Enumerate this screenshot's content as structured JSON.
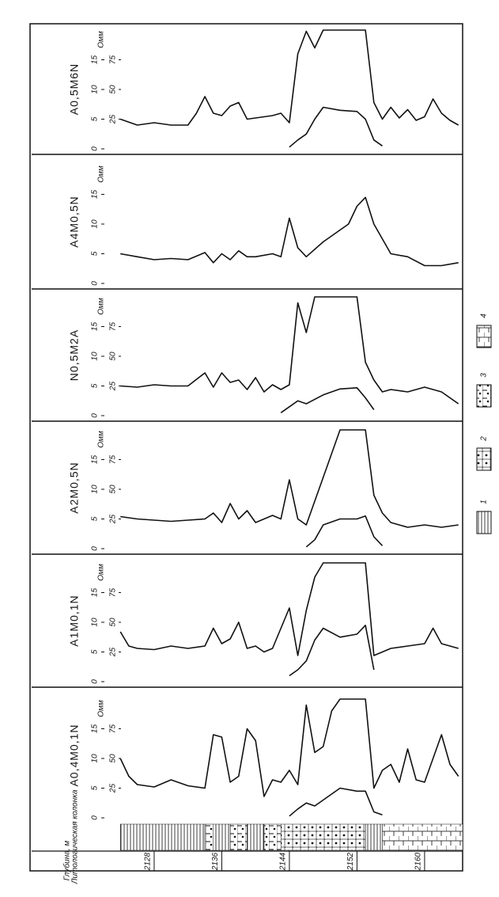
{
  "depth_axis": {
    "label": "Глубина, м",
    "xlim": [
      2113.5,
      2164.5
    ],
    "xticks": [
      2128,
      2136,
      2144,
      2152,
      2160
    ]
  },
  "chart_data": [
    {
      "type": "line",
      "title": "A0,5M6N",
      "y_label": "Омм",
      "xlim": [
        2113.5,
        2164.5
      ],
      "ylim": [
        0,
        20
      ],
      "yticks": [
        0,
        5,
        10,
        15
      ],
      "y2lim": [
        0,
        100
      ],
      "y2ticks": [
        25,
        50,
        75
      ],
      "series": [
        {
          "color": "#111111",
          "axis": "y2",
          "x": [
            2124,
            2126,
            2128,
            2130,
            2132,
            2133,
            2134,
            2135,
            2136,
            2137,
            2138,
            2139,
            2140,
            2142,
            2143,
            2144,
            2145,
            2146,
            2147,
            2148,
            2153,
            2154,
            2155,
            2156,
            2157,
            2158,
            2159,
            2160,
            2161,
            2162,
            2163,
            2164
          ],
          "values": [
            25,
            20,
            22,
            20,
            20,
            30,
            44,
            30,
            28,
            36,
            39,
            25,
            26,
            28,
            30,
            22,
            80,
            99,
            85,
            100,
            100,
            39,
            25,
            35,
            26,
            33,
            24,
            27,
            42,
            30,
            24,
            20
          ]
        },
        {
          "color": "#111111",
          "x": [
            2144,
            2145,
            2146,
            2147,
            2148,
            2150,
            2152,
            2153,
            2154,
            2155
          ],
          "values": [
            0.3,
            1.5,
            2.5,
            5,
            7,
            6.5,
            6.3,
            5,
            1.5,
            0.5
          ]
        }
      ]
    },
    {
      "type": "line",
      "title": "A4M0,5N",
      "y_label": "Омм",
      "xlim": [
        2113.5,
        2164.5
      ],
      "ylim": [
        0,
        20
      ],
      "yticks": [
        0,
        5,
        10,
        15
      ],
      "series": [
        {
          "color": "#111111",
          "x": [
            2124,
            2126,
            2128,
            2130,
            2132,
            2134,
            2135,
            2136,
            2137,
            2138,
            2139,
            2140,
            2142,
            2143,
            2144,
            2145,
            2146,
            2148,
            2150,
            2151,
            2152,
            2153,
            2154,
            2156,
            2158,
            2160,
            2162,
            2164
          ],
          "values": [
            5,
            4.5,
            4,
            4.2,
            4,
            5.2,
            3.5,
            5,
            4,
            5.5,
            4.5,
            4.5,
            5,
            4.5,
            11,
            6,
            4.5,
            7,
            9,
            10,
            13,
            14.5,
            10,
            5,
            4.5,
            3,
            3,
            3.5
          ]
        }
      ]
    },
    {
      "type": "line",
      "title": "N0,5M2A",
      "y_label": "Омм",
      "xlim": [
        2113.5,
        2164.5
      ],
      "ylim": [
        0,
        20
      ],
      "yticks": [
        0,
        5,
        10,
        15
      ],
      "y2lim": [
        0,
        100
      ],
      "y2ticks": [
        25,
        50,
        75
      ],
      "series": [
        {
          "color": "#111111",
          "axis": "y2",
          "x": [
            2124,
            2126,
            2128,
            2130,
            2132,
            2134,
            2135,
            2136,
            2137,
            2138,
            2139,
            2140,
            2141,
            2142,
            2143,
            2144,
            2145,
            2146,
            2147,
            2152,
            2153,
            2154,
            2155,
            2156,
            2158,
            2160,
            2162,
            2164
          ],
          "values": [
            25,
            24,
            26,
            25,
            25,
            36,
            24,
            36,
            28,
            30,
            22,
            32,
            20,
            26,
            22,
            26,
            95,
            70,
            100,
            100,
            45,
            30,
            20,
            22,
            20,
            24,
            20,
            10
          ]
        },
        {
          "color": "#111111",
          "x": [
            2143,
            2144,
            2145,
            2146,
            2148,
            2150,
            2152,
            2153,
            2154
          ],
          "values": [
            0.5,
            1.5,
            2.5,
            2,
            3.5,
            4.5,
            4.7,
            3,
            1
          ]
        }
      ]
    },
    {
      "type": "line",
      "title": "A2M0,5N",
      "y_label": "Омм",
      "xlim": [
        2113.5,
        2164.5
      ],
      "ylim": [
        0,
        20
      ],
      "yticks": [
        0,
        5,
        10,
        15
      ],
      "y2lim": [
        0,
        100
      ],
      "y2ticks": [
        25,
        50,
        75
      ],
      "series": [
        {
          "color": "#111111",
          "axis": "y2",
          "x": [
            2124,
            2126,
            2128,
            2130,
            2132,
            2134,
            2135,
            2136,
            2137,
            2138,
            2139,
            2140,
            2142,
            2143,
            2144,
            2145,
            2146,
            2148,
            2150,
            2153,
            2154,
            2155,
            2156,
            2158,
            2160,
            2162,
            2164
          ],
          "values": [
            27,
            25,
            24,
            23,
            24,
            25,
            30,
            22,
            38,
            25,
            32,
            22,
            28,
            25,
            58,
            25,
            20,
            60,
            100,
            100,
            45,
            30,
            22,
            18,
            20,
            18,
            20
          ]
        },
        {
          "color": "#111111",
          "x": [
            2146,
            2147,
            2148,
            2150,
            2152,
            2153,
            2154,
            2155
          ],
          "values": [
            0.3,
            1.5,
            4,
            5,
            5,
            5.5,
            2,
            0.5
          ]
        }
      ]
    },
    {
      "type": "line",
      "title": "A1M0,1N",
      "y_label": "Омм",
      "xlim": [
        2113.5,
        2164.5
      ],
      "ylim": [
        0,
        20
      ],
      "yticks": [
        0,
        5,
        10,
        15
      ],
      "y2lim": [
        0,
        100
      ],
      "y2ticks": [
        25,
        50,
        75
      ],
      "series": [
        {
          "color": "#111111",
          "axis": "y2",
          "x": [
            2124,
            2125,
            2126,
            2128,
            2130,
            2132,
            2134,
            2135,
            2136,
            2137,
            2138,
            2139,
            2140,
            2141,
            2142,
            2144,
            2145,
            2146,
            2147,
            2148,
            2153,
            2154,
            2156,
            2158,
            2160,
            2161,
            2162,
            2164
          ],
          "values": [
            42,
            30,
            28,
            27,
            30,
            28,
            30,
            45,
            32,
            36,
            50,
            28,
            30,
            25,
            28,
            62,
            22,
            60,
            88,
            100,
            100,
            22,
            28,
            30,
            32,
            45,
            32,
            28
          ]
        },
        {
          "color": "#111111",
          "x": [
            2144,
            2145,
            2146,
            2147,
            2148,
            2150,
            2152,
            2153,
            2154
          ],
          "values": [
            1,
            2,
            3.5,
            7,
            9,
            7.5,
            8,
            9.5,
            2
          ]
        }
      ]
    },
    {
      "type": "line",
      "title": "A0,4M0,1N",
      "y_label": "Омм",
      "xlim": [
        2113.5,
        2164.5
      ],
      "ylim": [
        0,
        20
      ],
      "yticks": [
        0,
        5,
        10,
        15
      ],
      "y2lim": [
        0,
        100
      ],
      "y2ticks": [
        25,
        50,
        75
      ],
      "series": [
        {
          "color": "#111111",
          "axis": "y2",
          "x": [
            2124,
            2125,
            2126,
            2128,
            2130,
            2132,
            2134,
            2135,
            2136,
            2137,
            2138,
            2139,
            2140,
            2141,
            2142,
            2143,
            2144,
            2145,
            2146,
            2147,
            2148,
            2149,
            2150,
            2153,
            2154,
            2155,
            2156,
            2157,
            2158,
            2159,
            2160,
            2162,
            2163,
            2164
          ],
          "values": [
            50,
            35,
            28,
            26,
            32,
            27,
            25,
            70,
            68,
            30,
            35,
            75,
            65,
            18,
            32,
            30,
            40,
            28,
            95,
            55,
            60,
            90,
            100,
            100,
            25,
            40,
            45,
            30,
            58,
            32,
            30,
            70,
            45,
            35
          ]
        },
        {
          "color": "#111111",
          "x": [
            2144,
            2145,
            2146,
            2147,
            2148,
            2150,
            2152,
            2153,
            2154,
            2155
          ],
          "values": [
            0.3,
            1.5,
            2.5,
            2,
            3,
            5,
            4.5,
            4.5,
            1,
            0.5
          ]
        }
      ]
    }
  ],
  "lithology": {
    "label": "Литологическая колонка",
    "layers": [
      {
        "top": 2124,
        "bottom": 2134,
        "type": 1
      },
      {
        "top": 2134,
        "bottom": 2135,
        "type": 3
      },
      {
        "top": 2135,
        "bottom": 2137,
        "type": 1
      },
      {
        "top": 2137,
        "bottom": 2139,
        "type": 3
      },
      {
        "top": 2139,
        "bottom": 2141,
        "type": 1
      },
      {
        "top": 2141,
        "bottom": 2143,
        "type": 3
      },
      {
        "top": 2143,
        "bottom": 2153,
        "type": 2
      },
      {
        "top": 2153,
        "bottom": 2155,
        "type": 1
      },
      {
        "top": 2155,
        "bottom": 2164.5,
        "type": 4
      }
    ],
    "legend": [
      1,
      2,
      3,
      4
    ]
  }
}
